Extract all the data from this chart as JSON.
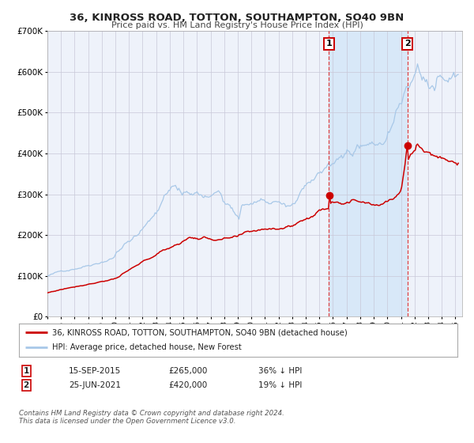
{
  "title": "36, KINROSS ROAD, TOTTON, SOUTHAMPTON, SO40 9BN",
  "subtitle": "Price paid vs. HM Land Registry's House Price Index (HPI)",
  "legend_line1": "36, KINROSS ROAD, TOTTON, SOUTHAMPTON, SO40 9BN (detached house)",
  "legend_line2": "HPI: Average price, detached house, New Forest",
  "purchase1_date": "15-SEP-2015",
  "purchase1_price": 265000,
  "purchase1_label": "36% ↓ HPI",
  "purchase2_date": "25-JUN-2021",
  "purchase2_price": 420000,
  "purchase2_label": "19% ↓ HPI",
  "purchase1_year": 2015.71,
  "purchase2_year": 2021.48,
  "note": "Contains HM Land Registry data © Crown copyright and database right 2024.\nThis data is licensed under the Open Government Licence v3.0.",
  "hpi_color": "#a8c8e8",
  "property_color": "#cc0000",
  "bg_color": "#ffffff",
  "plot_bg_color": "#eef2fa",
  "grid_color": "#c8c8d8",
  "highlight_bg": "#d8e8f8",
  "ylim_max": 700000,
  "xlim_start": 1995.0,
  "xlim_end": 2025.5
}
